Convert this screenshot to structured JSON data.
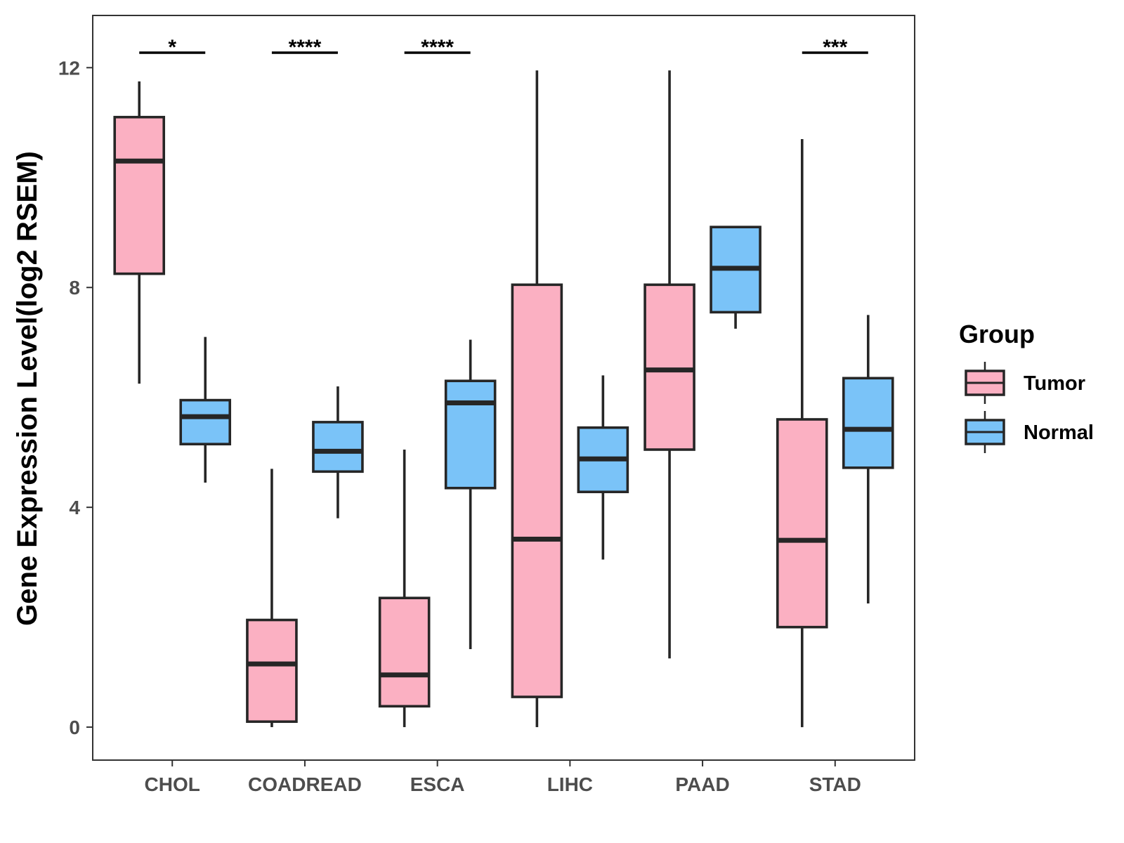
{
  "chart_data": {
    "type": "boxplot",
    "title": "",
    "xlabel": "",
    "ylabel": "Gene Expression Level(log2 RSEM)",
    "ylim": [
      -0.6,
      12.95
    ],
    "yticks": [
      0,
      4,
      8,
      12
    ],
    "categories": [
      "CHOL",
      "COADREAD",
      "ESCA",
      "LIHC",
      "PAAD",
      "STAD"
    ],
    "series": [
      {
        "name": "Tumor",
        "color": "#FBB0C2",
        "boxes": [
          {
            "min": 6.25,
            "q1": 8.25,
            "median": 10.3,
            "q3": 11.1,
            "max": 11.75
          },
          {
            "min": 0.0,
            "q1": 0.1,
            "median": 1.15,
            "q3": 1.95,
            "max": 4.7
          },
          {
            "min": 0.0,
            "q1": 0.38,
            "median": 0.95,
            "q3": 2.35,
            "max": 5.05
          },
          {
            "min": 0.0,
            "q1": 0.55,
            "median": 3.42,
            "q3": 8.05,
            "max": 11.95
          },
          {
            "min": 1.25,
            "q1": 5.05,
            "median": 6.5,
            "q3": 8.05,
            "max": 11.95
          },
          {
            "min": 0.0,
            "q1": 1.82,
            "median": 3.4,
            "q3": 5.6,
            "max": 10.7
          }
        ]
      },
      {
        "name": "Normal",
        "color": "#7AC3F8",
        "boxes": [
          {
            "min": 4.45,
            "q1": 5.15,
            "median": 5.65,
            "q3": 5.95,
            "max": 7.1
          },
          {
            "min": 3.8,
            "q1": 4.65,
            "median": 5.02,
            "q3": 5.55,
            "max": 6.2
          },
          {
            "min": 1.42,
            "q1": 4.35,
            "median": 5.9,
            "q3": 6.3,
            "max": 7.05
          },
          {
            "min": 3.05,
            "q1": 4.28,
            "median": 4.88,
            "q3": 5.45,
            "max": 6.4
          },
          {
            "min": 7.25,
            "q1": 7.55,
            "median": 8.35,
            "q3": 9.1,
            "max": 9.12
          },
          {
            "min": 2.25,
            "q1": 4.72,
            "median": 5.42,
            "q3": 6.35,
            "max": 7.5
          }
        ]
      }
    ],
    "significance": [
      {
        "category": "CHOL",
        "label": "*"
      },
      {
        "category": "COADREAD",
        "label": "****"
      },
      {
        "category": "ESCA",
        "label": "****"
      },
      {
        "category": "STAD",
        "label": "***"
      }
    ],
    "legend": {
      "title": "Group",
      "position": "right",
      "items": [
        {
          "label": "Tumor",
          "color": "#FBB0C2"
        },
        {
          "label": "Normal",
          "color": "#7AC3F8"
        }
      ]
    },
    "grid": false
  }
}
